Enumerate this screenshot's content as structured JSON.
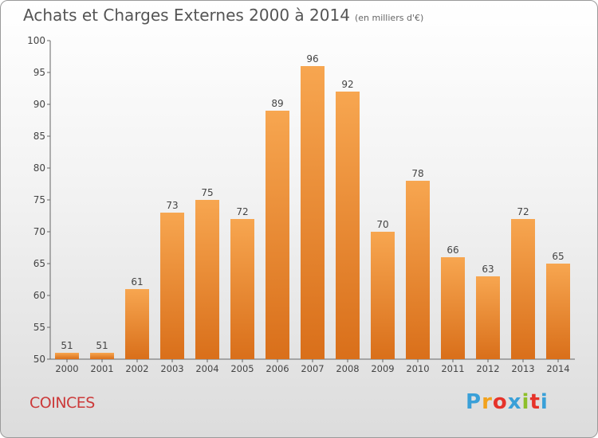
{
  "title": "Achats et Charges Externes 2000 à 2014",
  "subtitle": "(en milliers d'€)",
  "city": "COINCES",
  "brand": {
    "letters": [
      "P",
      "r",
      "o",
      "x",
      "i",
      "t",
      "i"
    ],
    "colors": [
      "#3aa0d8",
      "#f2a21c",
      "#e6332a",
      "#3aa0d8",
      "#8dbf2a",
      "#e6332a",
      "#3aa0d8"
    ]
  },
  "colors": {
    "bar_top": "#f7a650",
    "bar_bottom": "#d96f1a",
    "axis": "#666666",
    "grid": "#d0d0d0"
  },
  "chart_data": {
    "type": "bar",
    "categories": [
      "2000",
      "2001",
      "2002",
      "2003",
      "2004",
      "2005",
      "2006",
      "2007",
      "2008",
      "2009",
      "2010",
      "2011",
      "2012",
      "2013",
      "2014"
    ],
    "values": [
      51,
      51,
      61,
      73,
      75,
      72,
      89,
      96,
      92,
      70,
      78,
      66,
      63,
      72,
      65
    ],
    "ylim": [
      50,
      100
    ],
    "yticks": [
      50,
      55,
      60,
      65,
      70,
      75,
      80,
      85,
      90,
      95,
      100
    ],
    "grid": false
  }
}
